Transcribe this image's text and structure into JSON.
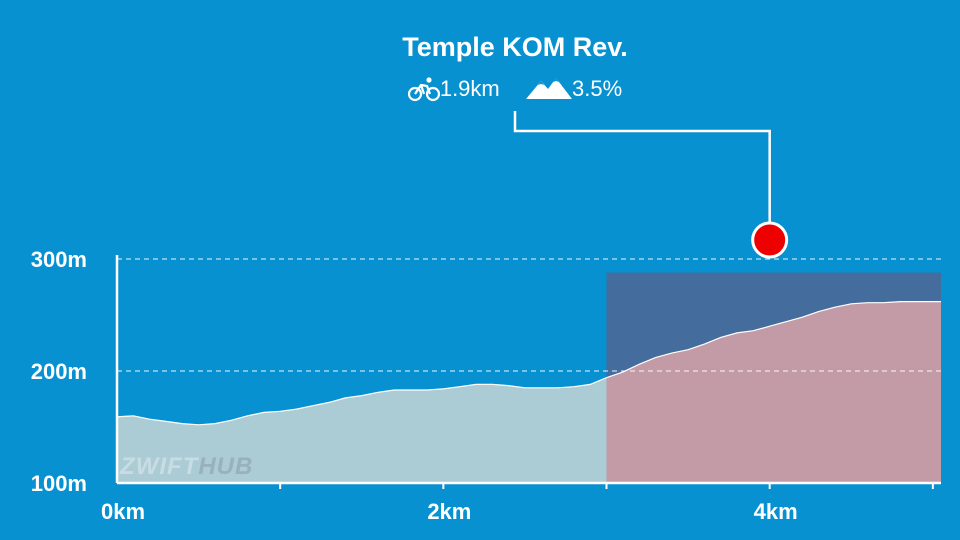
{
  "segment": {
    "name": "Temple KOM Rev.",
    "distance": "1.9km",
    "gradient": "3.5%",
    "distance_icon": "bicycle-icon",
    "gradient_icon": "mountain-icon",
    "marker_color": "#ee0000"
  },
  "watermark": {
    "part1": "ZWIFT",
    "part2": "HUB"
  },
  "colors": {
    "background": "#0891d0",
    "profile_fill": "#abcbd5",
    "segment_fill": "#c39ba6",
    "segment_box": "#446c9c",
    "axis": "#ffffff"
  },
  "chart_data": {
    "type": "area",
    "title": "",
    "xlabel": "",
    "ylabel": "",
    "x_unit": "km",
    "y_unit": "m",
    "xlim": [
      0,
      5.05
    ],
    "ylim": [
      100,
      300
    ],
    "x_ticks": [
      0,
      2,
      4
    ],
    "x_tick_labels": [
      "0km",
      "2km",
      "4km"
    ],
    "y_ticks": [
      100,
      200,
      300
    ],
    "y_tick_labels": [
      "100m",
      "200m",
      "300m"
    ],
    "grid": "dashed horizontal at 200m and 300m",
    "highlight_range_km": [
      3.0,
      5.05
    ],
    "segment_marker_km": 4.0,
    "series": [
      {
        "x": [
          0,
          0.1,
          0.2,
          0.3,
          0.4,
          0.5,
          0.6,
          0.7,
          0.8,
          0.9,
          1.0,
          1.1,
          1.2,
          1.3,
          1.4,
          1.5,
          1.6,
          1.7,
          1.8,
          1.9,
          2.0,
          2.1,
          2.2,
          2.3,
          2.4,
          2.5,
          2.6,
          2.7,
          2.8,
          2.9,
          3.0,
          3.1,
          3.2,
          3.3,
          3.4,
          3.5,
          3.6,
          3.7,
          3.8,
          3.9,
          4.0,
          4.1,
          4.2,
          4.3,
          4.4,
          4.5,
          4.6,
          4.7,
          4.8,
          4.9,
          5.0,
          5.05
        ],
        "y": [
          159,
          160,
          157,
          155,
          153,
          152,
          153,
          156,
          160,
          163,
          164,
          166,
          169,
          172,
          176,
          178,
          181,
          183,
          183,
          183,
          184,
          186,
          188,
          188,
          187,
          185,
          185,
          185,
          186,
          188,
          194,
          199,
          206,
          212,
          216,
          219,
          224,
          230,
          234,
          236,
          240,
          244,
          248,
          253,
          257,
          260,
          261,
          261,
          262,
          262,
          262,
          262
        ]
      }
    ]
  }
}
